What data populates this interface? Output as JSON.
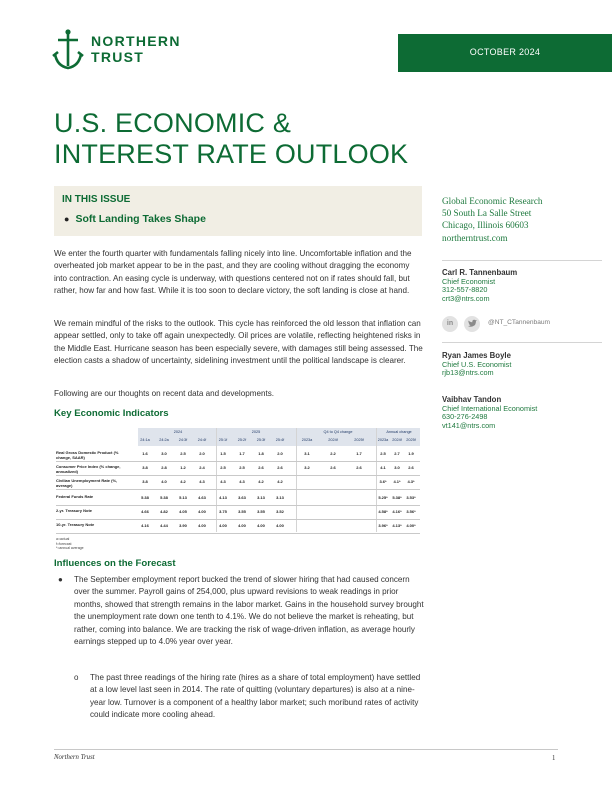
{
  "header": {
    "logo_line1": "NORTHERN",
    "logo_line2": "TRUST",
    "date": "OCTOBER 2024"
  },
  "title": {
    "line1": "U.S. ECONOMIC &",
    "line2": "INTEREST RATE OUTLOOK"
  },
  "in_this_issue": {
    "heading": "IN THIS ISSUE",
    "item": "Soft Landing Takes Shape"
  },
  "body": {
    "p1": "We enter the fourth quarter with fundamentals falling nicely into line. Uncomfortable inflation and the overheated job market appear to be in the past, and they are cooling without dragging the economy into contraction. An easing cycle is underway, with questions centered not on if rates should fall, but rather, how far and how fast. While it is too soon to declare victory, the soft landing is close at hand.",
    "p2": "We remain mindful of the risks to the outlook. This cycle has reinforced the old lesson that inflation can appear settled, only to take off again unexpectedly. Oil prices are volatile, reflecting heightened risks in the Middle East. Hurricane season has been especially severe, with damages still being assessed. The election casts a shadow of uncertainty, sidelining investment until the political landscape is clearer.",
    "p3": "Following are our thoughts on recent data and developments."
  },
  "key_indicators": {
    "heading": "Key Economic Indicators",
    "group_headers": [
      "2024",
      "2025",
      "Q4 to Q4 change",
      "Annual change"
    ],
    "columns": [
      "24:1a",
      "24:2a",
      "24:3f",
      "24:4f",
      "25:1f",
      "25:2f",
      "25:3f",
      "25:4f",
      "2023a",
      "2024f",
      "2025f",
      "2023a",
      "2024f",
      "2025f"
    ],
    "rows": [
      {
        "label": "Real Gross Domestic Product (% change, SAAR)",
        "values": [
          "1.6",
          "3.0",
          "2.5",
          "2.0",
          "1.5",
          "1.7",
          "1.8",
          "2.0",
          "3.1",
          "2.2",
          "1.7",
          "2.5",
          "2.7",
          "1.9"
        ]
      },
      {
        "label": "Consumer Price Index (% change, annualized)",
        "values": [
          "3.8",
          "2.8",
          "1.2",
          "2.4",
          "2.5",
          "2.5",
          "2.6",
          "2.6",
          "3.2",
          "2.6",
          "2.6",
          "4.1",
          "3.0",
          "2.6"
        ]
      },
      {
        "label": "Civilian Unemployment Rate (%, average)",
        "values": [
          "3.8",
          "4.0",
          "4.2",
          "4.3",
          "4.3",
          "4.3",
          "4.2",
          "4.2",
          "",
          "",
          "",
          "3.6*",
          "4.1*",
          "4.3*"
        ]
      },
      {
        "label": "Federal Funds Rate",
        "values": [
          "5.38",
          "5.38",
          "5.13",
          "4.63",
          "4.13",
          "3.63",
          "3.13",
          "3.13",
          "",
          "",
          "",
          "5.25*",
          "5.38*",
          "3.53*"
        ]
      },
      {
        "label": "2-yr. Treasury Note",
        "values": [
          "4.66",
          "4.82",
          "4.05",
          "4.00",
          "3.75",
          "3.55",
          "3.55",
          "3.52",
          "",
          "",
          "",
          "4.58*",
          "4.16*",
          "3.56*"
        ]
      },
      {
        "label": "10-yr. Treasury Note",
        "values": [
          "4.16",
          "4.44",
          "3.90",
          "4.00",
          "4.00",
          "4.00",
          "4.00",
          "4.00",
          "",
          "",
          "",
          "3.96*",
          "4.13*",
          "4.00*"
        ]
      }
    ],
    "notes": [
      "a=actual",
      "f=forecast",
      "*=annual average"
    ]
  },
  "influences": {
    "heading": "Influences on the Forecast",
    "bullet1": "The September employment report bucked the trend of slower hiring that had caused concern over the summer. Payroll gains of 254,000, plus upward revisions to weak readings in prior months, showed that strength remains in the labor market. Gains in the household survey brought the unemployment rate down one tenth to 4.1%. We do not believe the market is reheating, but rather, coming into balance. We are tracking the risk of wage-driven inflation, as average hourly earnings stepped up to 4.0% year over year.",
    "sub1": "The past three readings of the hiring rate (hires as a share of total employment) have settled at a low level last seen in 2014. The rate of quitting (voluntary departures) is also at a nine-year low. Turnover is a component of a healthy labor market; such moribund rates of activity could indicate more cooling ahead."
  },
  "sidebar": {
    "org": [
      "Global Economic Research",
      "50 South La Salle Street",
      "Chicago, Illinois 60603",
      "northerntrust.com"
    ],
    "social_handle": "@NT_CTannenbaum",
    "contacts": [
      {
        "name": "Carl R. Tannenbaum",
        "title": "Chief Economist",
        "phone": "312-557-8820",
        "email": "crt3@ntrs.com"
      },
      {
        "name": "Ryan James Boyle",
        "title": "Chief U.S. Economist",
        "phone": "",
        "email": "rjb13@ntrs.com"
      },
      {
        "name": "Vaibhav Tandon",
        "title": "Chief International Economist",
        "phone": "630-276-2498",
        "email": "vt141@ntrs.com"
      }
    ]
  },
  "footer": {
    "left": "Northern Trust",
    "page": "1"
  },
  "colors": {
    "brand_green": "#0d6b34",
    "issue_bg": "#f1eee4"
  }
}
